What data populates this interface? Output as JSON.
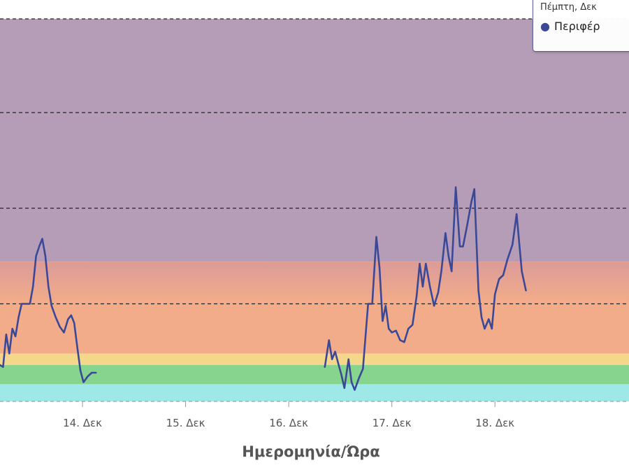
{
  "chart_data": {
    "type": "line",
    "title": "",
    "xlabel": "Ημερομηνία/Ώρα",
    "ylabel": "",
    "x_ticks": [
      "14. Δεκ",
      "15. Δεκ",
      "16. Δεκ",
      "17. Δεκ",
      "18. Δεκ"
    ],
    "xlim": [
      13.2,
      19.3
    ],
    "ylim": [
      0,
      100
    ],
    "grid": true,
    "bands": [
      {
        "from": 0,
        "to": 4.5,
        "color": "#9fe8e8"
      },
      {
        "from": 4.5,
        "to": 9.5,
        "color": "#86d48e"
      },
      {
        "from": 9.5,
        "to": 12.5,
        "color": "#f5d78c"
      },
      {
        "from": 12.5,
        "to": 36,
        "color": "#f2ac89"
      },
      {
        "from": 36,
        "to": 36.5,
        "color": "#e79a8a"
      },
      {
        "from": 36.5,
        "to": 100,
        "color": "#b59db7"
      }
    ],
    "band_grades": [
      {
        "from": 36.5,
        "to": 36,
        "color": "#d79898"
      },
      {
        "from": 28,
        "to": 12.5,
        "color": "#f2ac89"
      }
    ],
    "series": [
      {
        "name": "",
        "color": "#3a4897",
        "segments": [
          [
            [
              13.2,
              9.5
            ],
            [
              13.23,
              9.0
            ],
            [
              13.26,
              17.5
            ],
            [
              13.29,
              12.5
            ],
            [
              13.32,
              19.0
            ],
            [
              13.35,
              17.0
            ],
            [
              13.38,
              22.0
            ],
            [
              13.41,
              25.5
            ],
            [
              13.45,
              25.5
            ],
            [
              13.49,
              25.5
            ],
            [
              13.52,
              30.0
            ],
            [
              13.55,
              38.0
            ],
            [
              13.58,
              40.5
            ],
            [
              13.61,
              42.5
            ],
            [
              13.64,
              38.0
            ],
            [
              13.67,
              30.0
            ],
            [
              13.7,
              25.0
            ],
            [
              13.74,
              22.0
            ],
            [
              13.78,
              19.5
            ],
            [
              13.82,
              18.0
            ],
            [
              13.86,
              21.5
            ],
            [
              13.89,
              22.5
            ],
            [
              13.92,
              20.5
            ],
            [
              13.95,
              14.0
            ],
            [
              13.98,
              8.0
            ],
            [
              14.01,
              5.0
            ],
            [
              14.05,
              6.5
            ],
            [
              14.09,
              7.5
            ],
            [
              14.13,
              7.5
            ]
          ],
          [
            [
              16.35,
              9.0
            ],
            [
              16.39,
              16.0
            ],
            [
              16.42,
              11.0
            ],
            [
              16.45,
              13.0
            ],
            [
              16.48,
              10.0
            ],
            [
              16.51,
              7.0
            ],
            [
              16.54,
              3.5
            ],
            [
              16.58,
              11.0
            ],
            [
              16.61,
              5.0
            ],
            [
              16.64,
              3.0
            ],
            [
              16.68,
              6.0
            ],
            [
              16.72,
              8.5
            ],
            [
              16.77,
              25.5
            ],
            [
              16.81,
              25.5
            ],
            [
              16.85,
              43.0
            ],
            [
              16.88,
              35.0
            ],
            [
              16.91,
              21.0
            ],
            [
              16.94,
              25.0
            ],
            [
              16.97,
              19.0
            ],
            [
              17.0,
              18.0
            ],
            [
              17.04,
              18.5
            ],
            [
              17.08,
              16.0
            ],
            [
              17.12,
              15.5
            ],
            [
              17.16,
              19.0
            ],
            [
              17.2,
              20.0
            ],
            [
              17.24,
              27.5
            ],
            [
              17.27,
              36.0
            ],
            [
              17.3,
              30.0
            ],
            [
              17.33,
              36.0
            ],
            [
              17.37,
              30.0
            ],
            [
              17.41,
              25.0
            ],
            [
              17.45,
              28.5
            ],
            [
              17.48,
              34.0
            ],
            [
              17.52,
              44.0
            ],
            [
              17.55,
              38.0
            ],
            [
              17.58,
              34.0
            ],
            [
              17.62,
              56.0
            ],
            [
              17.66,
              40.5
            ],
            [
              17.69,
              40.5
            ],
            [
              17.73,
              46.0
            ],
            [
              17.77,
              52.0
            ],
            [
              17.8,
              55.5
            ],
            [
              17.84,
              29.0
            ],
            [
              17.87,
              22.0
            ],
            [
              17.9,
              19.0
            ],
            [
              17.94,
              21.5
            ],
            [
              17.97,
              19.0
            ],
            [
              18.0,
              28.0
            ],
            [
              18.04,
              32.0
            ],
            [
              18.08,
              33.0
            ],
            [
              18.12,
              37.0
            ],
            [
              18.17,
              41.0
            ],
            [
              18.21,
              49.0
            ],
            [
              18.26,
              34.0
            ],
            [
              18.3,
              29.0
            ]
          ]
        ]
      }
    ]
  },
  "tooltip": {
    "date": "Πέμπτη, Δεκ",
    "series_label": "Περιφέρ"
  }
}
